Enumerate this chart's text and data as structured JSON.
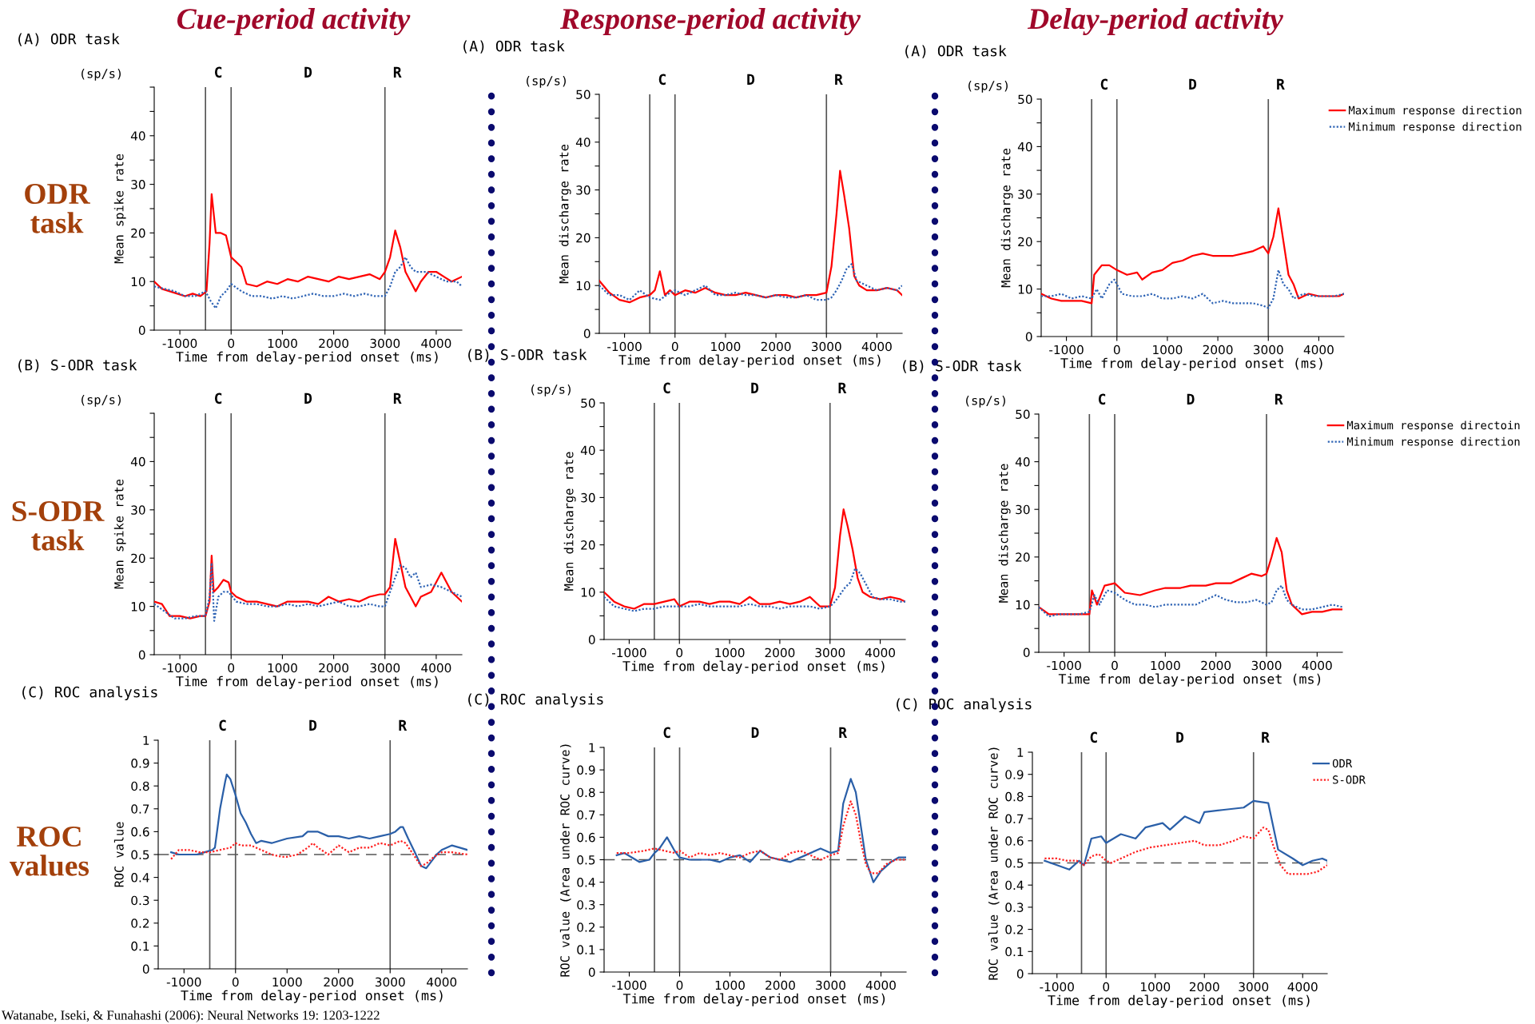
{
  "chart_data": [
    {
      "type": "line",
      "title": "(A) ODR task",
      "xlabel": "Time from delay-period onset (ms)",
      "ylabel": "Mean spike rate",
      "xlim": [
        -1500,
        4500
      ],
      "ylim": [
        0,
        50
      ],
      "xticks": [
        -1000,
        0,
        1000,
        2000,
        3000,
        4000
      ],
      "yticks": [
        0,
        {
          "value": 5,
          "label": null
        },
        10,
        {
          "value": 15,
          "label": null
        },
        20,
        {
          "value": 25,
          "label": null
        },
        30,
        {
          "value": 35,
          "label": null
        },
        40,
        {
          "value": 45,
          "label": null
        },
        {
          "value": 50,
          "label": null
        }
      ],
      "ref_lines": [
        {
          "axis": "x",
          "value": -500,
          "color": "#555555"
        },
        {
          "axis": "x",
          "value": 0,
          "color": "#555555"
        },
        {
          "axis": "x",
          "value": 3000,
          "color": "#555555"
        }
      ],
      "annotations": [
        "(sp/s)",
        "C",
        "D",
        "R"
      ],
      "series": [
        {
          "color": "#ff0000",
          "line_style": "solid",
          "x": [
            -1500,
            -1350,
            -1200,
            -1050,
            -900,
            -750,
            -600,
            -480,
            -420,
            -380,
            -300,
            -200,
            -100,
            0,
            100,
            200,
            300,
            500,
            700,
            900,
            1100,
            1300,
            1500,
            1700,
            1900,
            2100,
            2300,
            2500,
            2700,
            2900,
            3000,
            3100,
            3200,
            3300,
            3400,
            3500,
            3600,
            3700,
            3850,
            4000,
            4150,
            4300,
            4500
          ],
          "values": [
            10,
            8.5,
            8,
            7.5,
            7,
            7.5,
            7,
            8,
            18,
            28,
            20,
            20,
            19.5,
            15,
            14,
            13,
            9.5,
            9,
            10,
            9.5,
            10.5,
            10,
            11,
            10.5,
            10,
            11,
            10.5,
            11,
            11.5,
            10.5,
            12,
            15,
            20.5,
            17,
            12,
            10,
            8,
            10,
            12,
            12,
            11,
            10,
            11
          ]
        },
        {
          "color": "#2f64b5",
          "line_style": "dotted",
          "x": [
            -1500,
            -1300,
            -1100,
            -900,
            -700,
            -500,
            -400,
            -300,
            -200,
            -100,
            0,
            200,
            400,
            600,
            800,
            1000,
            1200,
            1400,
            1600,
            1800,
            2000,
            2200,
            2400,
            2600,
            2800,
            3000,
            3100,
            3200,
            3300,
            3400,
            3500,
            3600,
            3800,
            4000,
            4200,
            4400,
            4500
          ],
          "values": [
            9,
            8.5,
            8,
            7,
            7,
            8,
            6,
            4.5,
            7,
            8,
            9.5,
            8,
            7,
            7,
            6.5,
            7,
            6.5,
            7,
            7.5,
            7,
            7,
            7.5,
            7,
            7.5,
            7,
            7,
            9,
            12,
            13,
            15,
            13,
            12,
            12,
            11,
            10,
            10,
            9
          ]
        }
      ]
    },
    {
      "type": "line",
      "title": "(A) ODR task",
      "xlabel": "Time from delay-period onset (ms)",
      "ylabel": "Mean discharge rate",
      "xlim": [
        -1500,
        4500
      ],
      "ylim": [
        0,
        50
      ],
      "xticks": [
        -1000,
        0,
        1000,
        2000,
        3000,
        4000
      ],
      "yticks": [
        0,
        {
          "value": 5,
          "label": null
        },
        10,
        {
          "value": 15,
          "label": null
        },
        20,
        {
          "value": 25,
          "label": null
        },
        30,
        {
          "value": 35,
          "label": null
        },
        40,
        {
          "value": 45,
          "label": null
        },
        50
      ],
      "ref_lines": [
        {
          "axis": "x",
          "value": -500,
          "color": "#555555"
        },
        {
          "axis": "x",
          "value": 0,
          "color": "#555555"
        },
        {
          "axis": "x",
          "value": 3000,
          "color": "#555555"
        }
      ],
      "annotations": [
        "(sp/s)",
        "C",
        "D",
        "R"
      ],
      "series": [
        {
          "color": "#ff0000",
          "line_style": "solid",
          "x": [
            -1500,
            -1300,
            -1100,
            -900,
            -700,
            -500,
            -400,
            -300,
            -200,
            -100,
            0,
            200,
            400,
            600,
            800,
            1000,
            1200,
            1400,
            1600,
            1800,
            2000,
            2200,
            2400,
            2600,
            2800,
            3000,
            3100,
            3200,
            3270,
            3350,
            3450,
            3550,
            3650,
            3800,
            4000,
            4200,
            4400,
            4500
          ],
          "values": [
            11,
            8.5,
            7,
            6.5,
            7.5,
            8,
            9,
            13,
            8,
            9,
            8,
            9,
            8.5,
            9.5,
            8.5,
            8,
            8,
            8.5,
            8,
            7.5,
            8,
            8,
            7.5,
            8,
            8,
            8.5,
            14,
            25,
            34,
            29,
            22,
            12,
            10,
            9,
            9,
            9.5,
            9,
            8
          ]
        },
        {
          "color": "#2f64b5",
          "line_style": "dotted",
          "x": [
            -1500,
            -1300,
            -1100,
            -900,
            -700,
            -500,
            -300,
            -100,
            0,
            200,
            400,
            600,
            800,
            1000,
            1200,
            1400,
            1600,
            1800,
            2000,
            2200,
            2400,
            2600,
            2800,
            3000,
            3100,
            3200,
            3300,
            3400,
            3500,
            3600,
            3800,
            4000,
            4200,
            4400,
            4500
          ],
          "values": [
            10,
            8,
            8,
            7,
            9,
            7.5,
            7,
            8.5,
            9,
            8,
            9,
            10,
            8,
            8,
            8.5,
            8,
            8,
            7.5,
            8,
            7.5,
            7.5,
            8,
            7,
            7,
            7.5,
            9,
            11,
            13.5,
            14.5,
            11,
            10,
            9,
            9.5,
            9,
            10
          ]
        }
      ]
    },
    {
      "type": "line",
      "title": "(A) ODR task",
      "xlabel": "Time from delay-period onset (ms)",
      "ylabel": "Mean discharge rate",
      "xlim": [
        -1500,
        4500
      ],
      "ylim": [
        0,
        50
      ],
      "xticks": [
        -1000,
        0,
        1000,
        2000,
        3000,
        4000
      ],
      "yticks": [
        0,
        {
          "value": 5,
          "label": null
        },
        10,
        {
          "value": 15,
          "label": null
        },
        20,
        {
          "value": 25,
          "label": null
        },
        30,
        {
          "value": 35,
          "label": null
        },
        40,
        {
          "value": 45,
          "label": null
        },
        50
      ],
      "legend": "right",
      "ref_lines": [
        {
          "axis": "x",
          "value": -500,
          "color": "#555555"
        },
        {
          "axis": "x",
          "value": 0,
          "color": "#555555"
        },
        {
          "axis": "x",
          "value": 3000,
          "color": "#555555"
        }
      ],
      "annotations": [
        "(sp/s)",
        "C",
        "D",
        "R"
      ],
      "series": [
        {
          "name": "Maximum response direction",
          "color": "#ff0000",
          "line_style": "solid",
          "x": [
            -1500,
            -1300,
            -1100,
            -900,
            -700,
            -500,
            -450,
            -300,
            -150,
            0,
            200,
            400,
            500,
            700,
            900,
            1100,
            1300,
            1500,
            1700,
            1900,
            2100,
            2300,
            2500,
            2700,
            2900,
            3000,
            3100,
            3200,
            3300,
            3400,
            3500,
            3600,
            3800,
            4000,
            4200,
            4400,
            4500
          ],
          "values": [
            9,
            8,
            7.5,
            7.5,
            7.5,
            7,
            13,
            15,
            15,
            14,
            13,
            13.5,
            12,
            13.5,
            14,
            15.5,
            16,
            17,
            17.5,
            17,
            17,
            17,
            17.5,
            18,
            19,
            17.5,
            21,
            27,
            20,
            13,
            11,
            8,
            9,
            8.5,
            8.5,
            8.5,
            9
          ]
        },
        {
          "name": "Minimum response direction",
          "color": "#2f64b5",
          "line_style": "dotted",
          "x": [
            -1500,
            -1300,
            -1100,
            -900,
            -700,
            -500,
            -400,
            -300,
            -150,
            -50,
            100,
            300,
            500,
            700,
            900,
            1100,
            1300,
            1500,
            1700,
            1900,
            2100,
            2300,
            2500,
            2700,
            2900,
            3000,
            3100,
            3200,
            3300,
            3400,
            3500,
            3700,
            3900,
            4100,
            4300,
            4500
          ],
          "values": [
            8.5,
            8.5,
            9,
            8,
            8.5,
            8,
            10,
            8,
            11,
            12,
            9,
            8.5,
            8.5,
            9,
            8,
            8,
            8.5,
            8,
            9,
            7,
            7.5,
            7,
            7,
            7,
            6.5,
            6,
            8,
            14,
            11,
            10,
            8,
            9,
            8.5,
            8.5,
            8.5,
            9
          ]
        }
      ]
    },
    {
      "type": "line",
      "title": "(B) S-ODR task",
      "xlabel": "Time from delay-period onset (ms)",
      "ylabel": "Mean spike rate",
      "xlim": [
        -1500,
        4500
      ],
      "ylim": [
        0,
        50
      ],
      "xticks": [
        -1000,
        0,
        1000,
        2000,
        3000,
        4000
      ],
      "yticks": [
        0,
        {
          "value": 5,
          "label": null
        },
        10,
        {
          "value": 15,
          "label": null
        },
        20,
        {
          "value": 25,
          "label": null
        },
        30,
        {
          "value": 35,
          "label": null
        },
        40,
        {
          "value": 45,
          "label": null
        },
        {
          "value": 50,
          "label": null
        }
      ],
      "ref_lines": [
        {
          "axis": "x",
          "value": -500,
          "color": "#555555"
        },
        {
          "axis": "x",
          "value": 0,
          "color": "#555555"
        },
        {
          "axis": "x",
          "value": 3000,
          "color": "#555555"
        }
      ],
      "annotations": [
        "(sp/s)",
        "C",
        "D",
        "R"
      ],
      "series": [
        {
          "color": "#ff0000",
          "line_style": "solid",
          "x": [
            -1500,
            -1350,
            -1200,
            -1000,
            -800,
            -600,
            -500,
            -420,
            -380,
            -340,
            -250,
            -150,
            -50,
            0,
            100,
            300,
            500,
            700,
            900,
            1100,
            1300,
            1500,
            1700,
            1900,
            2100,
            2300,
            2500,
            2700,
            2900,
            3000,
            3100,
            3200,
            3300,
            3400,
            3500,
            3600,
            3700,
            3900,
            4100,
            4300,
            4500
          ],
          "values": [
            11,
            10.5,
            8,
            8,
            7.5,
            8,
            8,
            11,
            20.5,
            13,
            14,
            15.5,
            15,
            13,
            12,
            11,
            11,
            10.5,
            10,
            11,
            11,
            11,
            10.5,
            12,
            11,
            11.5,
            11,
            12,
            12.5,
            12.5,
            14,
            24,
            19,
            14,
            12,
            10,
            12,
            13,
            17,
            13,
            11
          ]
        },
        {
          "color": "#2f64b5",
          "line_style": "dotted",
          "x": [
            -1500,
            -1300,
            -1100,
            -900,
            -700,
            -500,
            -420,
            -380,
            -330,
            -250,
            -150,
            -50,
            100,
            300,
            500,
            700,
            900,
            1100,
            1300,
            1500,
            1700,
            1900,
            2100,
            2300,
            2500,
            2700,
            2900,
            3000,
            3100,
            3200,
            3300,
            3400,
            3500,
            3600,
            3700,
            3900,
            4100,
            4300,
            4500
          ],
          "values": [
            10.5,
            9,
            7.5,
            7.5,
            8,
            8,
            12,
            19,
            7,
            12,
            13,
            13,
            11,
            10.5,
            10.5,
            10,
            10,
            10.5,
            10,
            10.5,
            10,
            10.5,
            11,
            10,
            10,
            10.5,
            10,
            10,
            13,
            16,
            18.5,
            18,
            16,
            17,
            14,
            14.5,
            14,
            13,
            12
          ]
        }
      ]
    },
    {
      "type": "line",
      "title": "(B) S-ODR task",
      "xlabel": "Time from delay-period onset (ms)",
      "ylabel": "Mean discharge rate",
      "xlim": [
        -1500,
        4500
      ],
      "ylim": [
        0,
        50
      ],
      "xticks": [
        -1000,
        0,
        1000,
        2000,
        3000,
        4000
      ],
      "yticks": [
        0,
        {
          "value": 5,
          "label": null
        },
        10,
        {
          "value": 15,
          "label": null
        },
        20,
        {
          "value": 25,
          "label": null
        },
        30,
        {
          "value": 35,
          "label": null
        },
        40,
        {
          "value": 45,
          "label": null
        },
        50
      ],
      "ref_lines": [
        {
          "axis": "x",
          "value": -500,
          "color": "#555555"
        },
        {
          "axis": "x",
          "value": 0,
          "color": "#555555"
        },
        {
          "axis": "x",
          "value": 3000,
          "color": "#555555"
        }
      ],
      "annotations": [
        "(sp/s)",
        "C",
        "D",
        "R"
      ],
      "series": [
        {
          "color": "#ff0000",
          "line_style": "solid",
          "x": [
            -1500,
            -1300,
            -1100,
            -900,
            -700,
            -500,
            -300,
            -100,
            0,
            200,
            400,
            600,
            800,
            1000,
            1200,
            1400,
            1600,
            1800,
            2000,
            2200,
            2400,
            2600,
            2800,
            3000,
            3100,
            3200,
            3270,
            3350,
            3450,
            3550,
            3650,
            3800,
            4000,
            4200,
            4400,
            4500
          ],
          "values": [
            10,
            8,
            7,
            6.5,
            7.5,
            7.5,
            8,
            8.5,
            7,
            8,
            8,
            7.5,
            8,
            8,
            7.5,
            9,
            7.5,
            7.5,
            8,
            7.5,
            8,
            9,
            7,
            7,
            11,
            22,
            27.5,
            24,
            19,
            13,
            10,
            9,
            8.5,
            9,
            8.5,
            8
          ]
        },
        {
          "color": "#2f64b5",
          "line_style": "dotted",
          "x": [
            -1500,
            -1300,
            -1100,
            -900,
            -700,
            -500,
            -300,
            -100,
            0,
            200,
            400,
            600,
            800,
            1000,
            1200,
            1400,
            1600,
            1800,
            2000,
            2200,
            2400,
            2600,
            2800,
            3000,
            3100,
            3200,
            3300,
            3400,
            3500,
            3600,
            3700,
            3850,
            4000,
            4200,
            4400,
            4500
          ],
          "values": [
            9,
            7,
            6.5,
            6,
            6.5,
            6.5,
            7,
            7,
            7,
            7,
            7.5,
            7,
            7,
            7,
            7,
            7.5,
            7,
            7,
            6.5,
            7,
            7,
            7,
            6.5,
            7,
            8,
            9.5,
            11,
            12,
            15,
            14,
            12,
            9,
            8.5,
            8.5,
            8,
            8
          ]
        }
      ]
    },
    {
      "type": "line",
      "title": "(B) S-ODR task",
      "xlabel": "Time from delay-period onset (ms)",
      "ylabel": "Mean discharge rate",
      "xlim": [
        -1500,
        4500
      ],
      "ylim": [
        0,
        50
      ],
      "xticks": [
        -1000,
        0,
        1000,
        2000,
        3000,
        4000
      ],
      "yticks": [
        0,
        {
          "value": 5,
          "label": null
        },
        10,
        {
          "value": 15,
          "label": null
        },
        20,
        {
          "value": 25,
          "label": null
        },
        30,
        {
          "value": 35,
          "label": null
        },
        40,
        {
          "value": 45,
          "label": null
        },
        50
      ],
      "legend": "right",
      "ref_lines": [
        {
          "axis": "x",
          "value": -500,
          "color": "#555555"
        },
        {
          "axis": "x",
          "value": 0,
          "color": "#555555"
        },
        {
          "axis": "x",
          "value": 3000,
          "color": "#555555"
        }
      ],
      "annotations": [
        "(sp/s)",
        "C",
        "D",
        "R"
      ],
      "series": [
        {
          "name": "Maximum response directoin",
          "color": "#ff0000",
          "line_style": "solid",
          "x": [
            -1500,
            -1300,
            -1100,
            -900,
            -700,
            -500,
            -450,
            -350,
            -200,
            0,
            200,
            500,
            800,
            1000,
            1300,
            1500,
            1800,
            2000,
            2300,
            2500,
            2700,
            2900,
            3000,
            3100,
            3200,
            3300,
            3400,
            3500,
            3700,
            3900,
            4100,
            4300,
            4500
          ],
          "values": [
            9.5,
            8,
            8,
            8,
            8,
            8,
            13,
            10,
            14,
            14.5,
            12.5,
            12,
            13,
            13.5,
            13.5,
            14,
            14,
            14.5,
            14.5,
            15.5,
            16.5,
            16,
            16.5,
            20,
            24,
            21,
            13,
            10,
            8,
            8.5,
            8.5,
            9,
            9
          ]
        },
        {
          "name": "Minimum response direction",
          "color": "#2f64b5",
          "line_style": "dotted",
          "x": [
            -1500,
            -1300,
            -1100,
            -900,
            -700,
            -500,
            -400,
            -300,
            -150,
            0,
            200,
            400,
            600,
            800,
            1000,
            1200,
            1400,
            1600,
            1800,
            2000,
            2200,
            2400,
            2600,
            2800,
            3000,
            3100,
            3200,
            3300,
            3400,
            3500,
            3700,
            3900,
            4100,
            4300,
            4500
          ],
          "values": [
            9.5,
            7.5,
            8,
            8,
            8,
            8.5,
            12,
            10,
            13,
            12.5,
            11,
            10,
            10,
            9.5,
            10,
            10,
            10,
            10,
            11,
            12,
            11,
            10.5,
            10.5,
            11,
            10,
            10.5,
            13,
            14,
            11,
            10,
            9,
            9,
            9.5,
            10,
            9.5
          ]
        }
      ]
    },
    {
      "type": "line",
      "title": "(C) ROC analysis",
      "xlabel": "Time from delay-period onset (ms)",
      "ylabel": "ROC value",
      "xlim": [
        -1500,
        4500
      ],
      "ylim": [
        0,
        1
      ],
      "xticks": [
        -1000,
        0,
        1000,
        2000,
        3000,
        4000
      ],
      "yticks": [
        0,
        0.1,
        0.2,
        0.3,
        0.4,
        0.5,
        0.6,
        0.7,
        0.8,
        0.9,
        1
      ],
      "ref_lines": [
        {
          "axis": "x",
          "value": -500,
          "color": "#555555"
        },
        {
          "axis": "x",
          "value": 0,
          "color": "#555555"
        },
        {
          "axis": "x",
          "value": 3000,
          "color": "#555555"
        },
        {
          "axis": "y",
          "value": 0.5,
          "color": "#555555",
          "line_style": "dashed"
        }
      ],
      "annotations": [
        "C",
        "D",
        "R"
      ],
      "series": [
        {
          "color": "#2a5fa8",
          "line_style": "solid",
          "x": [
            -1250,
            -1100,
            -900,
            -750,
            -600,
            -450,
            -400,
            -300,
            -200,
            -170,
            -100,
            0,
            100,
            200,
            300,
            400,
            500,
            700,
            1000,
            1300,
            1400,
            1600,
            1800,
            2000,
            2200,
            2400,
            2600,
            2800,
            3000,
            3100,
            3200,
            3250,
            3350,
            3500,
            3600,
            3700,
            3800,
            3900,
            4000,
            4200,
            4350,
            4500
          ],
          "values": [
            0.51,
            0.5,
            0.5,
            0.5,
            0.51,
            0.52,
            0.53,
            0.7,
            0.82,
            0.85,
            0.83,
            0.76,
            0.68,
            0.64,
            0.59,
            0.55,
            0.56,
            0.55,
            0.57,
            0.58,
            0.6,
            0.6,
            0.58,
            0.58,
            0.57,
            0.58,
            0.57,
            0.58,
            0.59,
            0.6,
            0.62,
            0.62,
            0.57,
            0.5,
            0.45,
            0.44,
            0.47,
            0.5,
            0.52,
            0.54,
            0.53,
            0.52
          ]
        },
        {
          "color": "#ff2020",
          "line_style": "dotted",
          "x": [
            -1250,
            -1100,
            -900,
            -700,
            -500,
            -300,
            -100,
            0,
            100,
            300,
            500,
            700,
            900,
            1000,
            1200,
            1400,
            1500,
            1600,
            1800,
            2000,
            2200,
            2400,
            2600,
            2800,
            3000,
            3200,
            3300,
            3450,
            3600,
            3700,
            3850,
            4000,
            4200,
            4500
          ],
          "values": [
            0.48,
            0.52,
            0.52,
            0.51,
            0.51,
            0.52,
            0.53,
            0.55,
            0.54,
            0.54,
            0.52,
            0.5,
            0.49,
            0.49,
            0.5,
            0.53,
            0.55,
            0.53,
            0.5,
            0.54,
            0.51,
            0.53,
            0.53,
            0.55,
            0.54,
            0.56,
            0.55,
            0.5,
            0.45,
            0.46,
            0.49,
            0.51,
            0.51,
            0.5
          ]
        }
      ]
    },
    {
      "type": "line",
      "title": "(C) ROC analysis",
      "xlabel": "Time from delay-period onset (ms)",
      "ylabel": "ROC value (Area under ROC curve)",
      "xlim": [
        -1500,
        4500
      ],
      "ylim": [
        0,
        1
      ],
      "xticks": [
        -1000,
        0,
        1000,
        2000,
        3000,
        4000
      ],
      "yticks": [
        0,
        0.1,
        0.2,
        0.3,
        0.4,
        0.5,
        0.6,
        0.7,
        0.8,
        0.9,
        1
      ],
      "ref_lines": [
        {
          "axis": "x",
          "value": -500,
          "color": "#555555"
        },
        {
          "axis": "x",
          "value": 0,
          "color": "#555555"
        },
        {
          "axis": "x",
          "value": 3000,
          "color": "#555555"
        },
        {
          "axis": "y",
          "value": 0.5,
          "color": "#555555",
          "line_style": "dashed"
        }
      ],
      "annotations": [
        "C",
        "D",
        "R"
      ],
      "series": [
        {
          "color": "#2a5fa8",
          "line_style": "solid",
          "x": [
            -1250,
            -1100,
            -800,
            -600,
            -500,
            -400,
            -250,
            -100,
            0,
            200,
            400,
            600,
            800,
            1000,
            1200,
            1400,
            1600,
            1800,
            2000,
            2200,
            2500,
            2800,
            3000,
            3150,
            3250,
            3400,
            3500,
            3600,
            3700,
            3850,
            4000,
            4200,
            4350,
            4500
          ],
          "values": [
            0.52,
            0.53,
            0.49,
            0.5,
            0.53,
            0.55,
            0.6,
            0.54,
            0.51,
            0.5,
            0.5,
            0.5,
            0.49,
            0.51,
            0.52,
            0.49,
            0.54,
            0.51,
            0.5,
            0.49,
            0.52,
            0.55,
            0.53,
            0.54,
            0.75,
            0.86,
            0.8,
            0.65,
            0.5,
            0.4,
            0.45,
            0.49,
            0.51,
            0.51
          ]
        },
        {
          "color": "#ff2020",
          "line_style": "dotted",
          "x": [
            -1250,
            -1000,
            -700,
            -500,
            -300,
            -100,
            0,
            200,
            400,
            600,
            800,
            1000,
            1200,
            1400,
            1600,
            1800,
            2000,
            2200,
            2400,
            2600,
            2800,
            3000,
            3150,
            3250,
            3400,
            3500,
            3600,
            3700,
            3800,
            3950,
            4100,
            4300,
            4500
          ],
          "values": [
            0.53,
            0.53,
            0.54,
            0.55,
            0.54,
            0.53,
            0.54,
            0.51,
            0.53,
            0.52,
            0.53,
            0.52,
            0.51,
            0.53,
            0.54,
            0.51,
            0.5,
            0.53,
            0.54,
            0.52,
            0.5,
            0.52,
            0.53,
            0.65,
            0.76,
            0.7,
            0.58,
            0.48,
            0.44,
            0.44,
            0.48,
            0.5,
            0.5
          ]
        }
      ]
    },
    {
      "type": "line",
      "title": "(C) ROC analysis",
      "xlabel": "Time from delay-period onset (ms)",
      "ylabel": "ROC value (Area under ROC curve)",
      "xlim": [
        -1500,
        4500
      ],
      "ylim": [
        0,
        1
      ],
      "xticks": [
        -1000,
        0,
        1000,
        2000,
        3000,
        4000
      ],
      "yticks": [
        0,
        0.1,
        0.2,
        0.3,
        0.4,
        0.5,
        0.6,
        0.7,
        0.8,
        0.9,
        1
      ],
      "legend": "right",
      "ref_lines": [
        {
          "axis": "x",
          "value": -500,
          "color": "#555555"
        },
        {
          "axis": "x",
          "value": 0,
          "color": "#555555"
        },
        {
          "axis": "x",
          "value": 3000,
          "color": "#555555"
        },
        {
          "axis": "y",
          "value": 0.5,
          "color": "#555555",
          "line_style": "dashed"
        }
      ],
      "annotations": [
        "C",
        "D",
        "R"
      ],
      "series": [
        {
          "name": "ODR",
          "color": "#2a5fa8",
          "line_style": "solid",
          "x": [
            -1250,
            -1000,
            -750,
            -550,
            -450,
            -300,
            -100,
            0,
            300,
            600,
            800,
            1150,
            1300,
            1600,
            1900,
            2000,
            2400,
            2800,
            3000,
            3300,
            3500,
            3800,
            4000,
            4200,
            4400,
            4500
          ],
          "values": [
            0.51,
            0.49,
            0.47,
            0.51,
            0.49,
            0.61,
            0.62,
            0.59,
            0.63,
            0.61,
            0.66,
            0.68,
            0.65,
            0.71,
            0.68,
            0.73,
            0.74,
            0.75,
            0.78,
            0.77,
            0.56,
            0.52,
            0.49,
            0.51,
            0.52,
            0.51
          ]
        },
        {
          "name": "S-ODR",
          "color": "#ff2020",
          "line_style": "dotted",
          "x": [
            -1250,
            -1000,
            -800,
            -600,
            -450,
            -300,
            -150,
            0,
            100,
            300,
            600,
            900,
            1200,
            1500,
            1800,
            2000,
            2300,
            2600,
            2800,
            3000,
            3200,
            3300,
            3400,
            3550,
            3700,
            3900,
            4100,
            4300,
            4500
          ],
          "values": [
            0.52,
            0.52,
            0.51,
            0.51,
            0.49,
            0.53,
            0.54,
            0.51,
            0.5,
            0.52,
            0.55,
            0.57,
            0.58,
            0.59,
            0.6,
            0.58,
            0.58,
            0.6,
            0.62,
            0.61,
            0.66,
            0.65,
            0.58,
            0.49,
            0.45,
            0.45,
            0.45,
            0.46,
            0.49
          ]
        }
      ]
    },
    {
      "type": "other",
      "annotations": [
        "Cue-period activity",
        "Response-period activity",
        "Delay-period activity",
        "ODR\ntask",
        "S-ODR\ntask",
        "ROC\nvalues",
        "Watanabe, Iseki, & Funahashi (2006): Neural Networks 19: 1203-1222"
      ]
    }
  ]
}
